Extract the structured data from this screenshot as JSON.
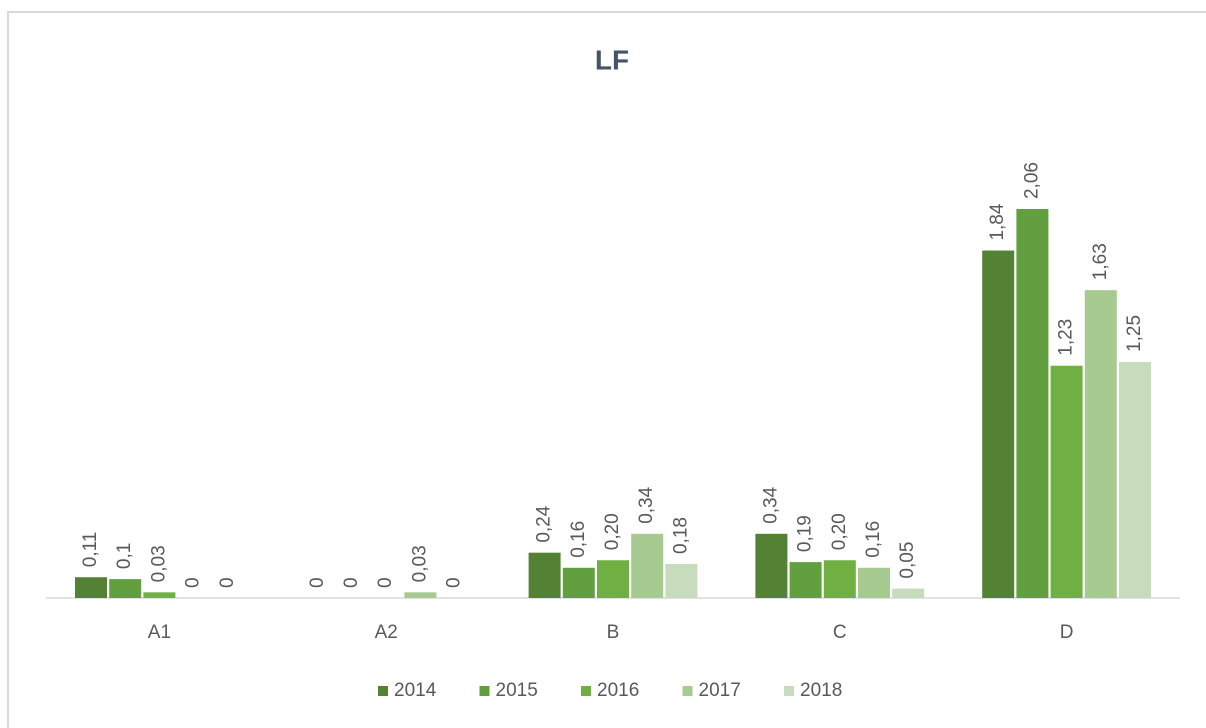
{
  "chart_data": {
    "type": "bar",
    "title": "LF",
    "categories": [
      "A1",
      "A2",
      "B",
      "C",
      "D"
    ],
    "series": [
      {
        "name": "2014",
        "color": "#548235",
        "values": [
          0.11,
          0,
          0.24,
          0.34,
          1.84
        ],
        "value_labels": [
          "0,11",
          "0",
          "0,24",
          "0,34",
          "1,84"
        ]
      },
      {
        "name": "2015",
        "color": "#62a03f",
        "values": [
          0.1,
          0,
          0.16,
          0.19,
          2.06
        ],
        "value_labels": [
          "0,1",
          "0",
          "0,16",
          "0,19",
          "2,06"
        ]
      },
      {
        "name": "2016",
        "color": "#70b043",
        "values": [
          0.03,
          0,
          0.2,
          0.2,
          1.23
        ],
        "value_labels": [
          "0,03",
          "0",
          "0,20",
          "0,20",
          "1,23"
        ]
      },
      {
        "name": "2017",
        "color": "#a6ca90",
        "values": [
          0,
          0.03,
          0.34,
          0.16,
          1.63
        ],
        "value_labels": [
          "0",
          "0,03",
          "0,34",
          "0,16",
          "1,63"
        ]
      },
      {
        "name": "2018",
        "color": "#c6dcbc",
        "values": [
          0,
          0,
          0.18,
          0.05,
          1.25
        ],
        "value_labels": [
          "0",
          "0",
          "0,18",
          "0,05",
          "1,25"
        ]
      }
    ],
    "legend": "bottom"
  }
}
